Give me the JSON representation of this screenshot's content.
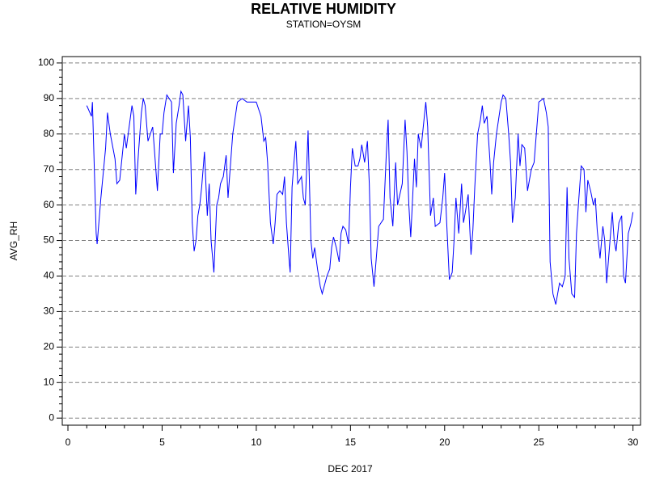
{
  "chart_data": {
    "type": "line",
    "title": "RELATIVE HUMIDITY",
    "subtitle": "STATION=OYSM",
    "xlabel": "DEC 2017",
    "ylabel": "AVG_RH",
    "xlim": [
      -0.3,
      30.4
    ],
    "ylim": [
      -2,
      101.8
    ],
    "xticks": [
      0,
      5,
      10,
      15,
      20,
      25,
      30
    ],
    "yticks": [
      0,
      10,
      20,
      30,
      40,
      50,
      60,
      70,
      80,
      90,
      100
    ],
    "xminorticks": [
      1,
      2,
      3,
      4,
      6,
      7,
      8,
      9,
      11,
      12,
      13,
      14,
      16,
      17,
      18,
      19,
      21,
      22,
      23,
      24,
      26,
      27,
      28,
      29
    ],
    "yminorticks": [
      2,
      4,
      6,
      8,
      12,
      14,
      16,
      18,
      22,
      24,
      26,
      28,
      32,
      34,
      36,
      38,
      42,
      44,
      46,
      48,
      52,
      54,
      56,
      58,
      62,
      64,
      66,
      68,
      72,
      74,
      76,
      78,
      82,
      84,
      86,
      88,
      92,
      94,
      96,
      98
    ],
    "grid": true,
    "series": [
      {
        "name": "AVG_RH",
        "color": "#0000ff",
        "x": [
          1,
          1.25,
          1.3,
          1.5,
          1.55,
          1.75,
          2,
          2.1,
          2.25,
          2.5,
          2.6,
          2.75,
          3,
          3.1,
          3.25,
          3.4,
          3.5,
          3.6,
          3.75,
          3.9,
          4,
          4.1,
          4.25,
          4.5,
          4.6,
          4.75,
          4.9,
          5,
          5.1,
          5.25,
          5.5,
          5.6,
          5.75,
          5.9,
          6,
          6.1,
          6.25,
          6.4,
          6.5,
          6.6,
          6.7,
          6.8,
          6.9,
          7,
          7.1,
          7.25,
          7.4,
          7.5,
          7.6,
          7.75,
          7.9,
          8,
          8.1,
          8.25,
          8.4,
          8.5,
          8.75,
          9,
          9.25,
          9.5,
          9.75,
          10,
          10.25,
          10.4,
          10.5,
          10.6,
          10.75,
          10.9,
          11,
          11.1,
          11.25,
          11.4,
          11.5,
          11.6,
          11.75,
          11.8,
          11.9,
          12,
          12.1,
          12.2,
          12.4,
          12.5,
          12.6,
          12.75,
          12.9,
          13,
          13.1,
          13.25,
          13.4,
          13.5,
          13.75,
          13.9,
          14,
          14.1,
          14.25,
          14.4,
          14.5,
          14.6,
          14.75,
          14.9,
          15,
          15.1,
          15.25,
          15.4,
          15.5,
          15.6,
          15.75,
          15.9,
          16,
          16.1,
          16.25,
          16.4,
          16.5,
          16.75,
          16.9,
          17,
          17.1,
          17.25,
          17.4,
          17.5,
          17.75,
          17.9,
          18,
          18.1,
          18.2,
          18.4,
          18.5,
          18.6,
          18.75,
          19,
          19.1,
          19.25,
          19.4,
          19.5,
          19.75,
          19.9,
          20,
          20.1,
          20.25,
          20.4,
          20.5,
          20.6,
          20.75,
          20.9,
          21,
          21.1,
          21.25,
          21.4,
          21.5,
          21.6,
          21.75,
          21.9,
          22,
          22.1,
          22.25,
          22.4,
          22.5,
          22.6,
          22.75,
          23,
          23.1,
          23.25,
          23.4,
          23.5,
          23.6,
          23.75,
          23.9,
          24,
          24.1,
          24.25,
          24.4,
          24.5,
          24.6,
          24.75,
          25,
          25.25,
          25.4,
          25.5,
          25.6,
          25.75,
          25.9,
          26,
          26.1,
          26.25,
          26.4,
          26.5,
          26.6,
          26.75,
          26.9,
          27,
          27.1,
          27.25,
          27.4,
          27.5,
          27.6,
          27.75,
          27.9,
          28,
          28.1,
          28.25,
          28.4,
          28.5,
          28.6,
          28.75,
          28.9,
          29,
          29.1,
          29.25,
          29.4,
          29.5,
          29.6,
          29.75,
          29.9,
          30
        ],
        "values": [
          88,
          85,
          89,
          52,
          49,
          62,
          76,
          86,
          80,
          73,
          66,
          67,
          80,
          76,
          82,
          88,
          85,
          63,
          75,
          86,
          90,
          88,
          78,
          82,
          75,
          64,
          80,
          80,
          86,
          91,
          89,
          69,
          83,
          88,
          92,
          91,
          78,
          88,
          79,
          55,
          47,
          50,
          57,
          60,
          65,
          75,
          57,
          66,
          50,
          41,
          60,
          62,
          66,
          68,
          74,
          62,
          80,
          89,
          90,
          89,
          89,
          89,
          85,
          78,
          79,
          72,
          55,
          49,
          55,
          63,
          64,
          63,
          68,
          55,
          44,
          41,
          65,
          72,
          78,
          66,
          68,
          62,
          60,
          81,
          50,
          45,
          48,
          42,
          37,
          35,
          40,
          42,
          48,
          51,
          48,
          44,
          52,
          54,
          53,
          49,
          65,
          76,
          71,
          71,
          73,
          77,
          72,
          78,
          66,
          45,
          37,
          47,
          54,
          56,
          74,
          84,
          62,
          54,
          72,
          60,
          66,
          84,
          75,
          60,
          51,
          73,
          65,
          80,
          76,
          89,
          82,
          57,
          62,
          54,
          55,
          62,
          69,
          56,
          39,
          41,
          50,
          62,
          52,
          66,
          55,
          58,
          63,
          46,
          53,
          65,
          80,
          84,
          88,
          83,
          85,
          73,
          63,
          72,
          80,
          89,
          91,
          90,
          80,
          72,
          55,
          62,
          80,
          71,
          77,
          76,
          64,
          67,
          70,
          72,
          89,
          90,
          86,
          82,
          44,
          35,
          32,
          35,
          38,
          37,
          40,
          65,
          45,
          35,
          34,
          52,
          60,
          71,
          70,
          58,
          67,
          64,
          60,
          62,
          53,
          45,
          54,
          50,
          38,
          48,
          58,
          50,
          47,
          55,
          57,
          40,
          38,
          52,
          55,
          58
        ]
      }
    ]
  }
}
